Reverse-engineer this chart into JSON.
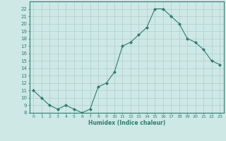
{
  "x": [
    0,
    1,
    2,
    3,
    4,
    5,
    6,
    7,
    8,
    9,
    10,
    11,
    12,
    13,
    14,
    15,
    16,
    17,
    18,
    19,
    20,
    21,
    22,
    23
  ],
  "y": [
    11,
    10,
    9,
    8.5,
    9,
    8.5,
    8,
    8.5,
    11.5,
    12,
    13.5,
    17,
    17.5,
    18.5,
    19.5,
    22,
    22,
    21,
    20,
    18,
    17.5,
    16.5,
    15,
    14.5
  ],
  "xlabel": "Humidex (Indice chaleur)",
  "xlim": [
    -0.5,
    23.5
  ],
  "ylim": [
    8,
    23
  ],
  "yticks": [
    8,
    9,
    10,
    11,
    12,
    13,
    14,
    15,
    16,
    17,
    18,
    19,
    20,
    21,
    22
  ],
  "xticks": [
    0,
    1,
    2,
    3,
    4,
    5,
    6,
    7,
    8,
    9,
    10,
    11,
    12,
    13,
    14,
    15,
    16,
    17,
    18,
    19,
    20,
    21,
    22,
    23
  ],
  "line_color": "#2e7d6e",
  "bg_color": "#cde8e5",
  "grid_color": "#aecfcc",
  "axes_color": "#2e7d6e",
  "text_color": "#2e7d6e"
}
